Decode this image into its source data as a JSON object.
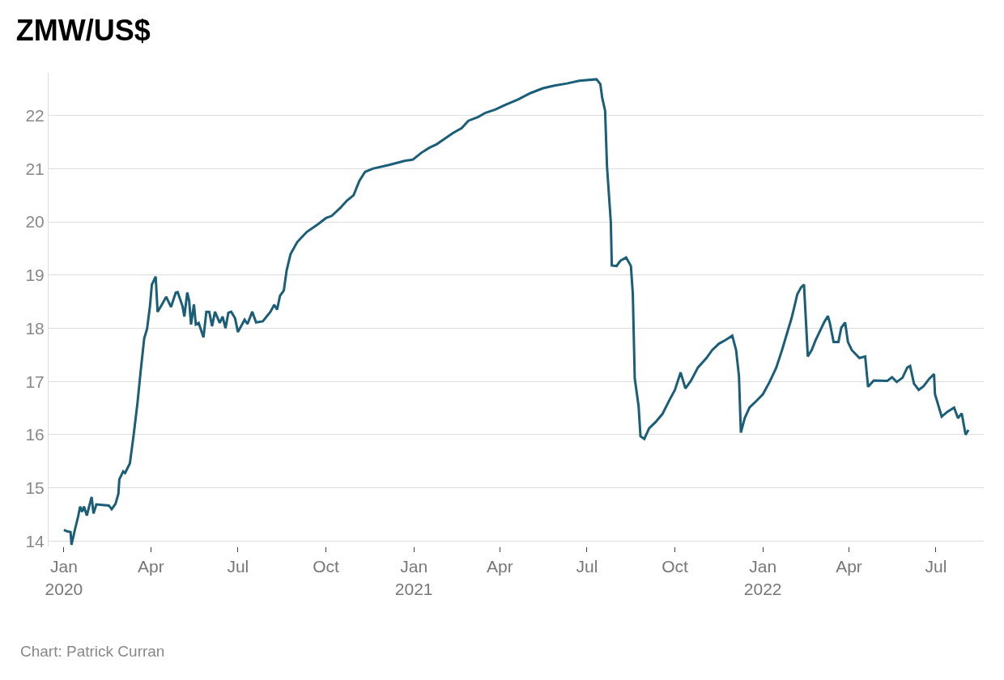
{
  "chart_data": {
    "type": "line",
    "title": "ZMW/US$",
    "annotations": [
      "Chart: Patrick Curran"
    ],
    "x": [
      "2020-01-01",
      "2020-01-05",
      "2020-01-08",
      "2020-01-09",
      "2020-01-13",
      "2020-01-16",
      "2020-01-18",
      "2020-01-20",
      "2020-01-22",
      "2020-01-25",
      "2020-01-30",
      "2020-02-01",
      "2020-02-04",
      "2020-02-10",
      "2020-02-17",
      "2020-02-20",
      "2020-02-24",
      "2020-02-27",
      "2020-02-28",
      "2020-03-03",
      "2020-03-05",
      "2020-03-10",
      "2020-03-14",
      "2020-03-18",
      "2020-03-21",
      "2020-03-25",
      "2020-03-28",
      "2020-03-31",
      "2020-04-02",
      "2020-04-06",
      "2020-04-08",
      "2020-04-12",
      "2020-04-17",
      "2020-04-22",
      "2020-04-27",
      "2020-04-29",
      "2020-05-04",
      "2020-05-06",
      "2020-05-09",
      "2020-05-11",
      "2020-05-13",
      "2020-05-16",
      "2020-05-18",
      "2020-05-21",
      "2020-05-26",
      "2020-05-29",
      "2020-06-01",
      "2020-06-04",
      "2020-06-07",
      "2020-06-12",
      "2020-06-15",
      "2020-06-18",
      "2020-06-21",
      "2020-06-24",
      "2020-06-28",
      "2020-07-01",
      "2020-07-08",
      "2020-07-11",
      "2020-07-16",
      "2020-07-20",
      "2020-07-27",
      "2020-08-04",
      "2020-08-08",
      "2020-08-11",
      "2020-08-14",
      "2020-08-18",
      "2020-08-21",
      "2020-08-25",
      "2020-09-01",
      "2020-09-11",
      "2020-09-23",
      "2020-10-01",
      "2020-10-07",
      "2020-10-16",
      "2020-10-23",
      "2020-10-30",
      "2020-11-05",
      "2020-11-11",
      "2020-11-19",
      "2020-12-06",
      "2020-12-23",
      "2020-12-31",
      "2021-01-09",
      "2021-01-17",
      "2021-01-25",
      "2021-02-03",
      "2021-02-11",
      "2021-02-20",
      "2021-02-27",
      "2021-03-09",
      "2021-03-17",
      "2021-03-27",
      "2021-04-07",
      "2021-04-20",
      "2021-05-03",
      "2021-05-16",
      "2021-05-28",
      "2021-06-10",
      "2021-06-23",
      "2021-07-11",
      "2021-07-15",
      "2021-07-17",
      "2021-07-20",
      "2021-07-22",
      "2021-07-26",
      "2021-07-27",
      "2021-08-01",
      "2021-08-05",
      "2021-08-11",
      "2021-08-16",
      "2021-08-18",
      "2021-08-20",
      "2021-08-24",
      "2021-08-26",
      "2021-08-30",
      "2021-09-04",
      "2021-09-11",
      "2021-09-18",
      "2021-09-25",
      "2021-10-01",
      "2021-10-07",
      "2021-10-12",
      "2021-10-18",
      "2021-10-25",
      "2021-11-03",
      "2021-11-09",
      "2021-11-16",
      "2021-11-23",
      "2021-11-30",
      "2021-12-04",
      "2021-12-07",
      "2021-12-09",
      "2021-12-13",
      "2021-12-18",
      "2021-12-25",
      "2022-01-01",
      "2022-01-08",
      "2022-01-15",
      "2022-01-21",
      "2022-01-26",
      "2022-01-31",
      "2022-02-03",
      "2022-02-06",
      "2022-02-10",
      "2022-02-13",
      "2022-02-17",
      "2022-02-21",
      "2022-02-25",
      "2022-03-02",
      "2022-03-06",
      "2022-03-10",
      "2022-03-12",
      "2022-03-16",
      "2022-03-21",
      "2022-03-24",
      "2022-03-28",
      "2022-03-31",
      "2022-04-04",
      "2022-04-12",
      "2022-04-18",
      "2022-04-21",
      "2022-04-27",
      "2022-05-11",
      "2022-05-16",
      "2022-05-21",
      "2022-05-27",
      "2022-06-01",
      "2022-06-04",
      "2022-06-08",
      "2022-06-13",
      "2022-06-18",
      "2022-06-24",
      "2022-06-29",
      "2022-06-30",
      "2022-07-07",
      "2022-07-13",
      "2022-07-20",
      "2022-07-24",
      "2022-07-28",
      "2022-08-01",
      "2022-08-04"
    ],
    "series": [
      {
        "color": "#1a5e78",
        "values": [
          14.21,
          14.18,
          14.17,
          13.93,
          14.25,
          14.47,
          14.65,
          14.55,
          14.65,
          14.48,
          14.83,
          14.52,
          14.69,
          14.68,
          14.67,
          14.6,
          14.7,
          14.89,
          15.16,
          15.31,
          15.28,
          15.46,
          16.0,
          16.6,
          17.14,
          17.81,
          17.99,
          18.41,
          18.82,
          18.97,
          18.31,
          18.43,
          18.59,
          18.4,
          18.67,
          18.68,
          18.42,
          18.22,
          18.67,
          18.52,
          18.07,
          18.45,
          18.07,
          18.1,
          17.83,
          18.31,
          18.31,
          18.04,
          18.31,
          18.1,
          18.22,
          18.0,
          18.29,
          18.31,
          18.19,
          17.93,
          18.16,
          18.08,
          18.31,
          18.11,
          18.13,
          18.31,
          18.44,
          18.35,
          18.61,
          18.71,
          19.09,
          19.39,
          19.62,
          19.81,
          19.96,
          20.07,
          20.11,
          20.26,
          20.4,
          20.5,
          20.77,
          20.94,
          21.0,
          21.07,
          21.15,
          21.17,
          21.3,
          21.39,
          21.46,
          21.57,
          21.67,
          21.76,
          21.9,
          21.97,
          22.05,
          22.11,
          22.2,
          22.3,
          22.42,
          22.51,
          22.56,
          22.6,
          22.65,
          22.68,
          22.59,
          22.33,
          22.09,
          21.04,
          19.99,
          19.18,
          19.17,
          19.27,
          19.33,
          19.17,
          18.64,
          17.06,
          16.54,
          15.97,
          15.92,
          16.12,
          16.24,
          16.39,
          16.64,
          16.84,
          17.17,
          16.87,
          17.02,
          17.26,
          17.44,
          17.59,
          17.71,
          17.78,
          17.86,
          17.59,
          17.1,
          16.04,
          16.31,
          16.51,
          16.63,
          16.76,
          16.99,
          17.26,
          17.59,
          17.89,
          18.19,
          18.41,
          18.64,
          18.77,
          18.82,
          17.47,
          17.59,
          17.77,
          17.96,
          18.11,
          18.23,
          18.1,
          17.74,
          17.74,
          18.01,
          18.11,
          17.74,
          17.59,
          17.44,
          17.47,
          16.9,
          17.02,
          17.01,
          17.08,
          16.99,
          17.07,
          17.26,
          17.29,
          16.96,
          16.84,
          16.91,
          17.05,
          17.14,
          16.76,
          16.34,
          16.43,
          16.51,
          16.31,
          16.4,
          16.0,
          16.09
        ]
      }
    ],
    "xlim": [
      "2019-12-16",
      "2022-08-20"
    ],
    "xticks": [
      {
        "value": "2020-01-01",
        "label": "Jan\n2020"
      },
      {
        "value": "2020-04-01",
        "label": "Apr"
      },
      {
        "value": "2020-07-01",
        "label": "Jul"
      },
      {
        "value": "2020-10-01",
        "label": "Oct"
      },
      {
        "value": "2021-01-01",
        "label": "Jan\n2021"
      },
      {
        "value": "2021-04-01",
        "label": "Apr"
      },
      {
        "value": "2021-07-01",
        "label": "Jul"
      },
      {
        "value": "2021-10-01",
        "label": "Oct"
      },
      {
        "value": "2022-01-01",
        "label": "Jan\n2022"
      },
      {
        "value": "2022-04-01",
        "label": "Apr"
      },
      {
        "value": "2022-07-01",
        "label": "Jul"
      }
    ],
    "ylim": [
      13.9,
      22.8
    ],
    "yticks": [
      14,
      15,
      16,
      17,
      18,
      19,
      20,
      21,
      22
    ],
    "grid": "y",
    "line_style": "solid"
  }
}
